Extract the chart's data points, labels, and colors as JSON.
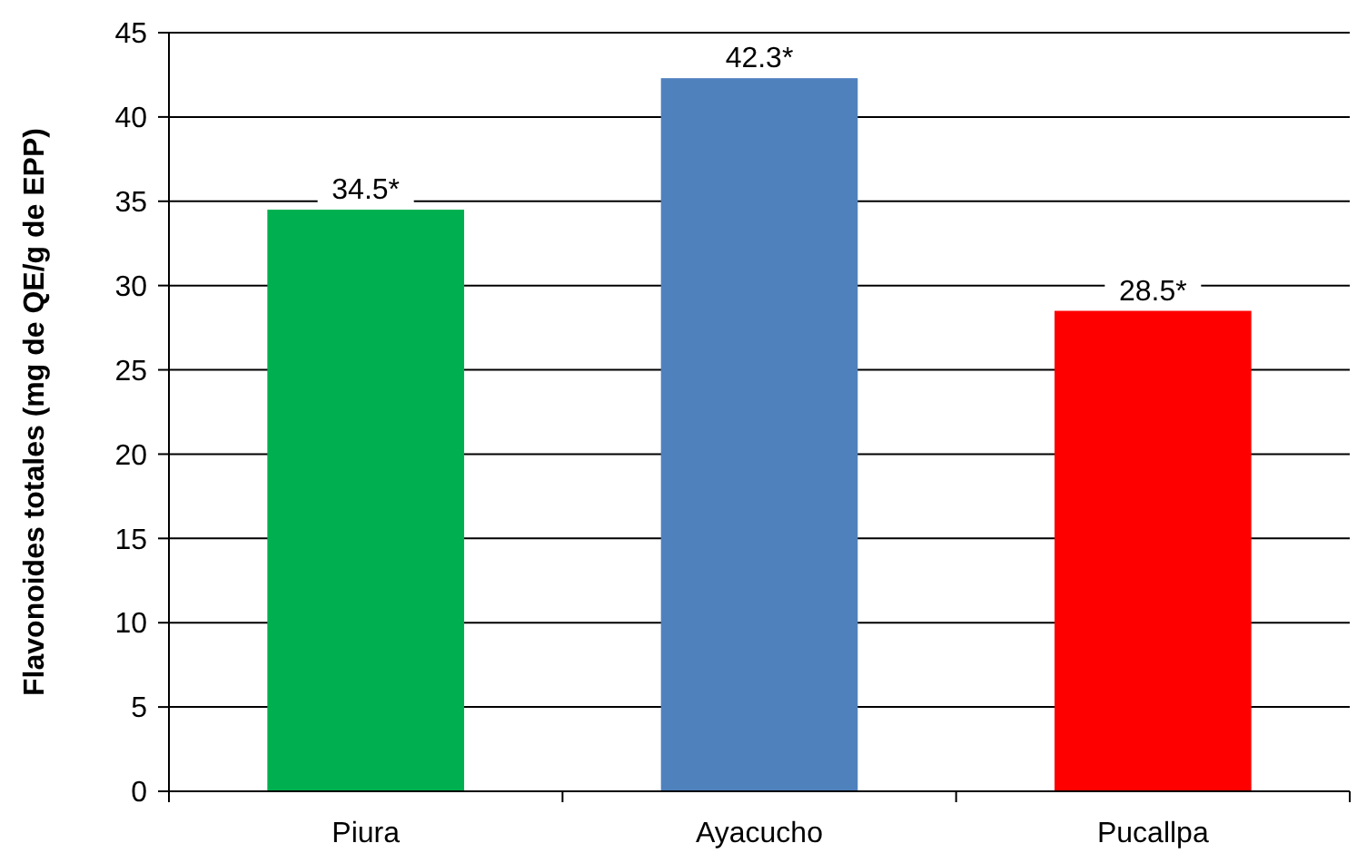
{
  "chart_data": {
    "type": "bar",
    "ylabel": "Flavonoides totales (mg de QE/g de EPP)",
    "categories": [
      "Piura",
      "Ayacucho",
      "Pucallpa"
    ],
    "values": [
      34.5,
      42.3,
      28.5
    ],
    "colors": [
      "#00b050",
      "#4f81bd",
      "#ff0000"
    ],
    "value_labels": [
      "34.5*",
      "42.3*",
      "28.5*"
    ],
    "ylim": [
      0,
      45
    ],
    "yticks": [
      0,
      5,
      10,
      15,
      20,
      25,
      30,
      35,
      40,
      45
    ],
    "grid": "y"
  }
}
